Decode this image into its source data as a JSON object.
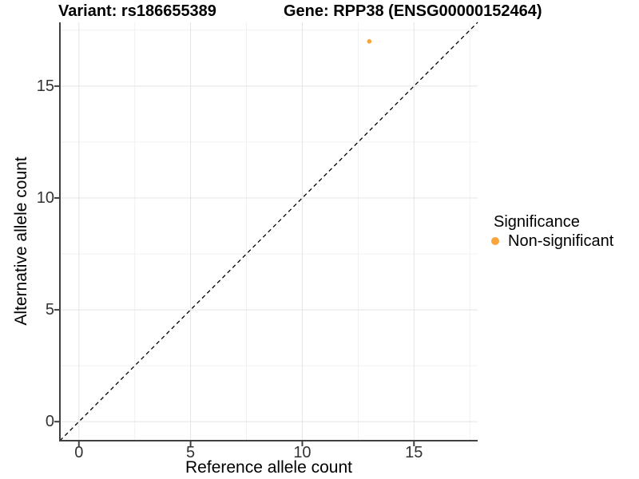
{
  "header": {
    "title_left": "Variant: rs186655389",
    "title_right": "Gene: RPP38 (ENSG00000152464)"
  },
  "chart_data": {
    "type": "scatter",
    "xlabel": "Reference allele count",
    "ylabel": "Alternative allele count",
    "xlim": [
      -0.85,
      17.85
    ],
    "ylim": [
      -0.85,
      17.85
    ],
    "xticks": [
      0,
      5,
      10,
      15
    ],
    "yticks": [
      0,
      5,
      10,
      15
    ],
    "xminor": [
      2.5,
      7.5,
      12.5,
      17.5
    ],
    "yminor": [
      2.5,
      7.5,
      12.5,
      17.5
    ],
    "grid": "on",
    "identity_line": {
      "style": "dashed",
      "from": [
        -0.85,
        -0.85
      ],
      "to": [
        17.85,
        17.85
      ],
      "color": "#000000"
    },
    "series": [
      {
        "name": "Non-significant",
        "color": "#FAA43A",
        "point_radius": 2.8,
        "points": [
          {
            "x": 13,
            "y": 17
          }
        ]
      }
    ],
    "legend": {
      "title": "Significance",
      "position": "right",
      "items": [
        {
          "label": "Non-significant",
          "color": "#FAA43A"
        }
      ]
    },
    "colors": {
      "axis": "#404040",
      "grid_major": "#E4E4E4",
      "grid_minor": "#F1F1F1"
    }
  }
}
